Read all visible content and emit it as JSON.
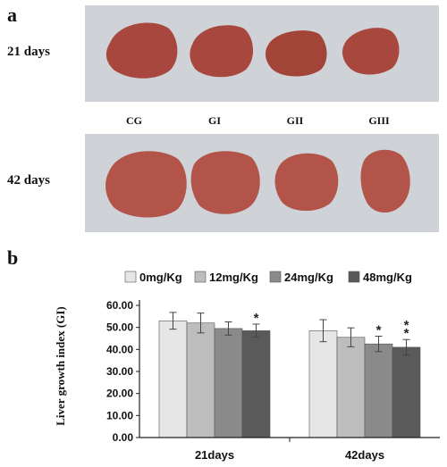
{
  "panel_a": {
    "letter": "a",
    "rows": [
      "21 days",
      "42 days"
    ],
    "groups": [
      "CG",
      "GI",
      "GII",
      "GIII"
    ],
    "photo_background": "#cfd2d6",
    "liver_color": "#a8473e"
  },
  "panel_b": {
    "letter": "b"
  },
  "chart_data": {
    "type": "bar",
    "categories": [
      "21days",
      "42days"
    ],
    "series": [
      {
        "name": "0mg/Kg",
        "color": "#e6e6e6",
        "values": [
          53.0,
          48.5
        ],
        "errors": [
          3.8,
          5.0
        ],
        "markers": [
          "",
          ""
        ]
      },
      {
        "name": "12mg/Kg",
        "color": "#bdbdbd",
        "values": [
          52.0,
          45.5
        ],
        "errors": [
          4.5,
          4.3
        ],
        "markers": [
          "",
          ""
        ]
      },
      {
        "name": "24mg/Kg",
        "color": "#8a8a8a",
        "values": [
          49.5,
          42.5
        ],
        "errors": [
          3.0,
          3.5
        ],
        "markers": [
          "",
          "*"
        ]
      },
      {
        "name": "48mg/Kg",
        "color": "#5a5a5a",
        "values": [
          48.5,
          41.0
        ],
        "errors": [
          3.0,
          3.5
        ],
        "markers": [
          "*",
          "**"
        ]
      }
    ],
    "ylabel": "Liver growth index (GI)",
    "ylim": [
      0,
      60
    ],
    "yticks": [
      "0.00",
      "10.00",
      "20.00",
      "30.00",
      "40.00",
      "50.00",
      "60.00"
    ],
    "grid": false,
    "legend": "top"
  }
}
